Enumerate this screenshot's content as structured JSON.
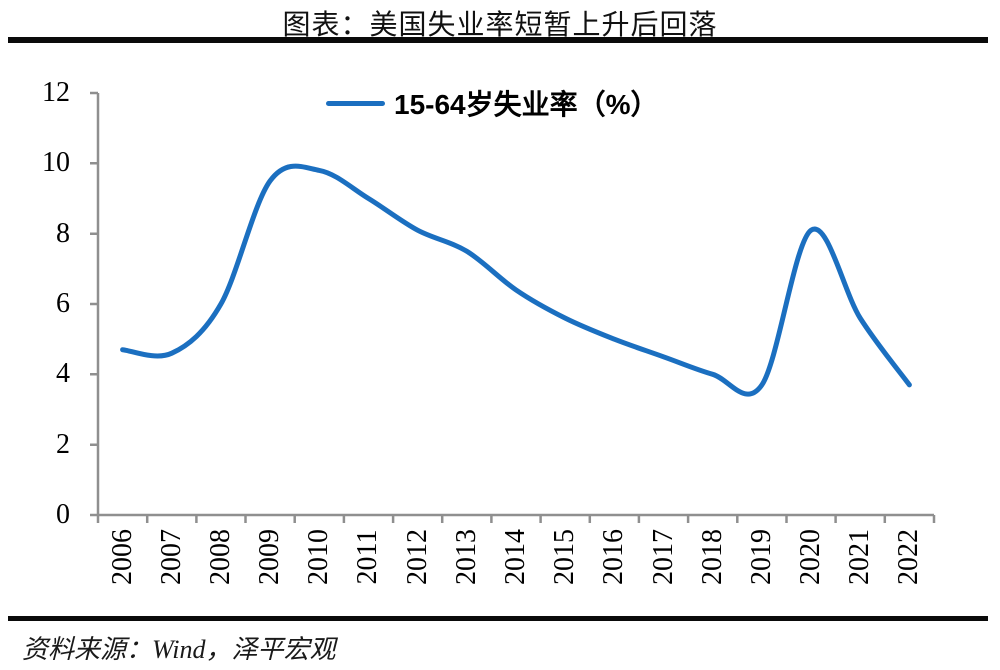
{
  "title": "图表：美国失业率短暂上升后回落",
  "source": "资料来源：Wind，泽平宏观",
  "legend": {
    "label": "15-64岁失业率（%）"
  },
  "colors": {
    "line": "#1B6FC0",
    "axis": "#8F8F8F",
    "text": "#000000",
    "rule": "#0A0A0A"
  },
  "chart_data": {
    "type": "line",
    "title": "图表：美国失业率短暂上升后回落",
    "categories": [
      "2006",
      "2007",
      "2008",
      "2009",
      "2010",
      "2011",
      "2012",
      "2013",
      "2014",
      "2015",
      "2016",
      "2017",
      "2018",
      "2019",
      "2020",
      "2021",
      "2022"
    ],
    "series": [
      {
        "name": "15-64岁失业率（%）",
        "values": [
          4.7,
          4.6,
          6.0,
          9.5,
          9.8,
          9.0,
          8.1,
          7.5,
          6.4,
          5.6,
          5.0,
          4.5,
          4.0,
          3.7,
          8.1,
          5.6,
          3.7
        ]
      }
    ],
    "xlabel": "",
    "ylabel": "",
    "ylim": [
      0,
      12
    ],
    "yticks": [
      0,
      2,
      4,
      6,
      8,
      10,
      12
    ],
    "grid": false,
    "smooth": true,
    "legend_position": "top-center",
    "x_label_rotation": -90
  }
}
